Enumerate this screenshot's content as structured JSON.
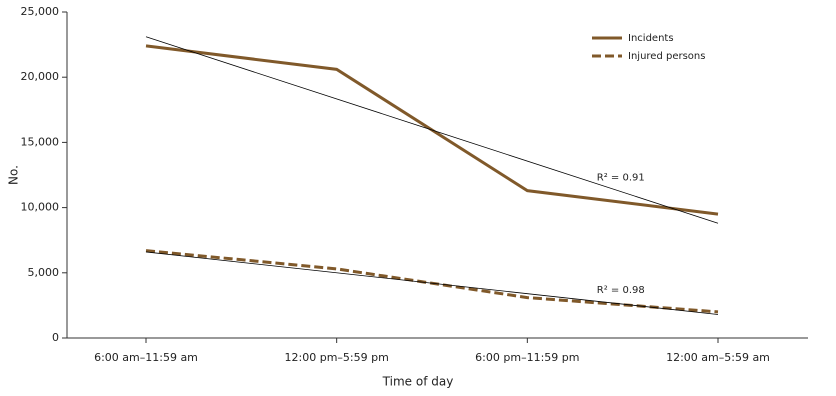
{
  "chart_data": {
    "type": "line",
    "x_label": "Time of day",
    "y_label": "No.",
    "categories": [
      "6:00 am–11:59 am",
      "12:00 pm–5:59 pm",
      "6:00 pm–11:59 pm",
      "12:00 am–5:59 am"
    ],
    "series": [
      {
        "name": "Incidents",
        "color": "#80592a",
        "line_style": "solid",
        "values": [
          22400,
          20600,
          11300,
          9500
        ],
        "trend": {
          "values": [
            23100,
            8800
          ],
          "label": "R² = 0.91",
          "color": "#000000"
        }
      },
      {
        "name": "Injured persons",
        "color": "#80592a",
        "line_style": "dashed",
        "values": [
          6700,
          5300,
          3100,
          2000
        ],
        "trend": {
          "values": [
            6600,
            1800
          ],
          "label": "R² = 0.98",
          "color": "#000000"
        }
      }
    ],
    "ylim": [
      0,
      25000
    ],
    "yticks": [
      0,
      {
        "value": 5000,
        "label": "5,000"
      },
      {
        "value": 10000,
        "label": "10,000"
      },
      {
        "value": 15000,
        "label": "15,000"
      },
      {
        "value": 20000,
        "label": "20,000"
      },
      {
        "value": 25000,
        "label": "25,000"
      }
    ],
    "legend": "top-right"
  }
}
